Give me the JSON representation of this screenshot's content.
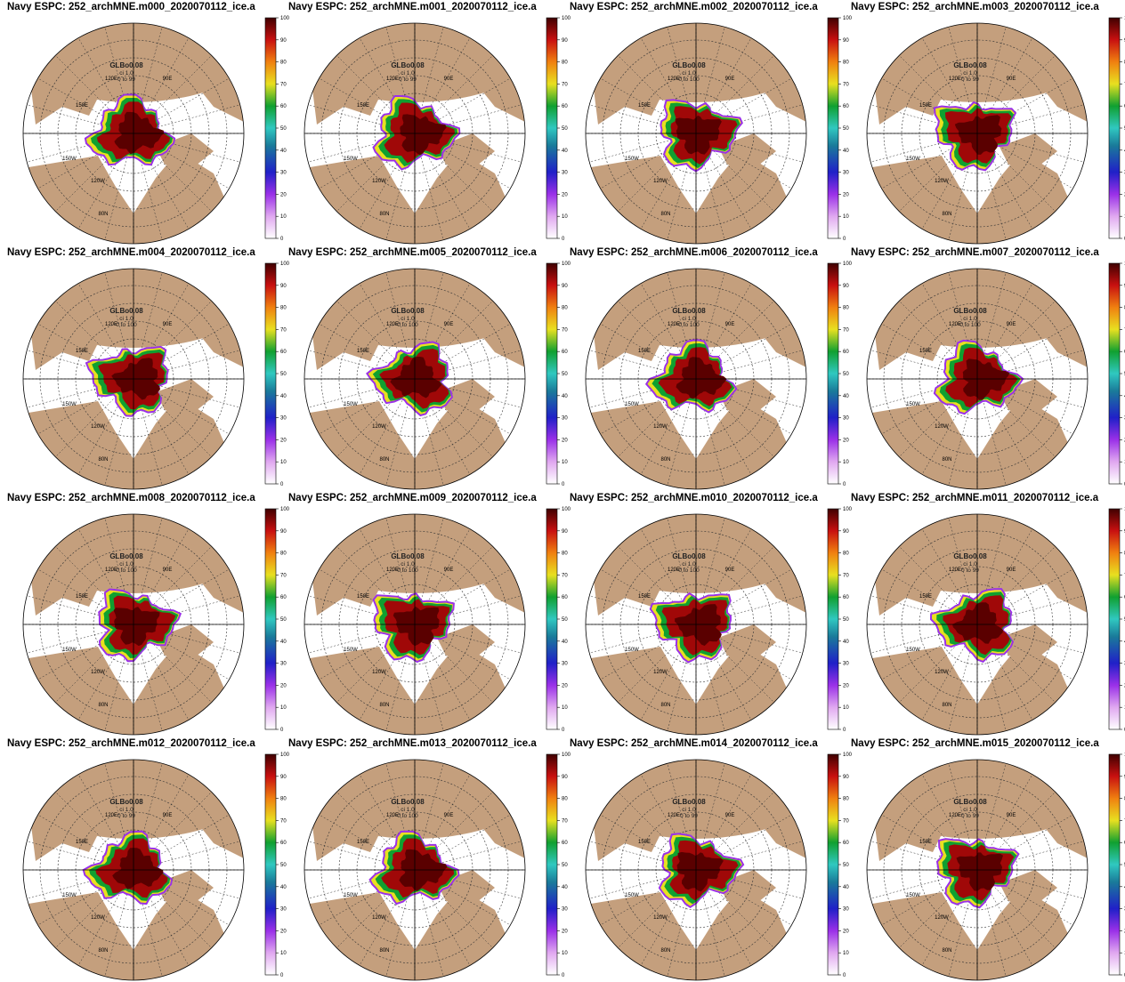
{
  "panels": [
    {
      "title": "Navy ESPC: 252_archMNE.m000_2020070112_ice.a",
      "label": "GLBo0.08",
      "ci": "ci 1.0",
      "range": "0 to 99"
    },
    {
      "title": "Navy ESPC: 252_archMNE.m001_2020070112_ice.a",
      "label": "GLBo0.08",
      "ci": "ci 1.0",
      "range": "0 to 99"
    },
    {
      "title": "Navy ESPC: 252_archMNE.m002_2020070112_ice.a",
      "label": "GLBo0.08",
      "ci": "ci 1.0",
      "range": "0 to 100"
    },
    {
      "title": "Navy ESPC: 252_archMNE.m003_2020070112_ice.a",
      "label": "GLBo0.08",
      "ci": "ci 1.0",
      "range": "0 to 99"
    },
    {
      "title": "Navy ESPC: 252_archMNE.m004_2020070112_ice.a",
      "label": "GLBo0.08",
      "ci": "ci 1.0",
      "range": "0 to 100"
    },
    {
      "title": "Navy ESPC: 252_archMNE.m005_2020070112_ice.a",
      "label": "GLBo0.08",
      "ci": "ci 1.0",
      "range": "0 to 100"
    },
    {
      "title": "Navy ESPC: 252_archMNE.m006_2020070112_ice.a",
      "label": "GLBo0.08",
      "ci": "ci 1.0",
      "range": "0 to 100"
    },
    {
      "title": "Navy ESPC: 252_archMNE.m007_2020070112_ice.a",
      "label": "GLBo0.08",
      "ci": "ci 1.0",
      "range": "0 to 100"
    },
    {
      "title": "Navy ESPC: 252_archMNE.m008_2020070112_ice.a",
      "label": "GLBo0.08",
      "ci": "ci 1.0",
      "range": "0 to 100"
    },
    {
      "title": "Navy ESPC: 252_archMNE.m009_2020070112_ice.a",
      "label": "GLBo0.08",
      "ci": "ci 1.0",
      "range": "0 to 100"
    },
    {
      "title": "Navy ESPC: 252_archMNE.m010_2020070112_ice.a",
      "label": "GLBo0.08",
      "ci": "ci 1.0",
      "range": "0 to 100"
    },
    {
      "title": "Navy ESPC: 252_archMNE.m011_2020070112_ice.a",
      "label": "GLBo0.08",
      "ci": "ci 1.0",
      "range": "0 to 99"
    },
    {
      "title": "Navy ESPC: 252_archMNE.m012_2020070112_ice.a",
      "label": "GLBo0.08",
      "ci": "ci 1.0",
      "range": "0 to 99"
    },
    {
      "title": "Navy ESPC: 252_archMNE.m013_2020070112_ice.a",
      "label": "GLBo0.08",
      "ci": "ci 1.0",
      "range": "0 to 100"
    },
    {
      "title": "Navy ESPC: 252_archMNE.m014_2020070112_ice.a",
      "label": "GLBo0.08",
      "ci": "ci 1.0",
      "range": "0 to 99"
    },
    {
      "title": "Navy ESPC: 252_archMNE.m015_2020070112_ice.a",
      "label": "GLBo0.08",
      "ci": "ci 1.0",
      "range": "0 to 99"
    }
  ],
  "colorbar_ticks": [
    0,
    10,
    20,
    30,
    40,
    50,
    60,
    70,
    80,
    90,
    100
  ],
  "map_labels": [
    "120E",
    "90E",
    "150E",
    "150W",
    "120W",
    "80N"
  ]
}
